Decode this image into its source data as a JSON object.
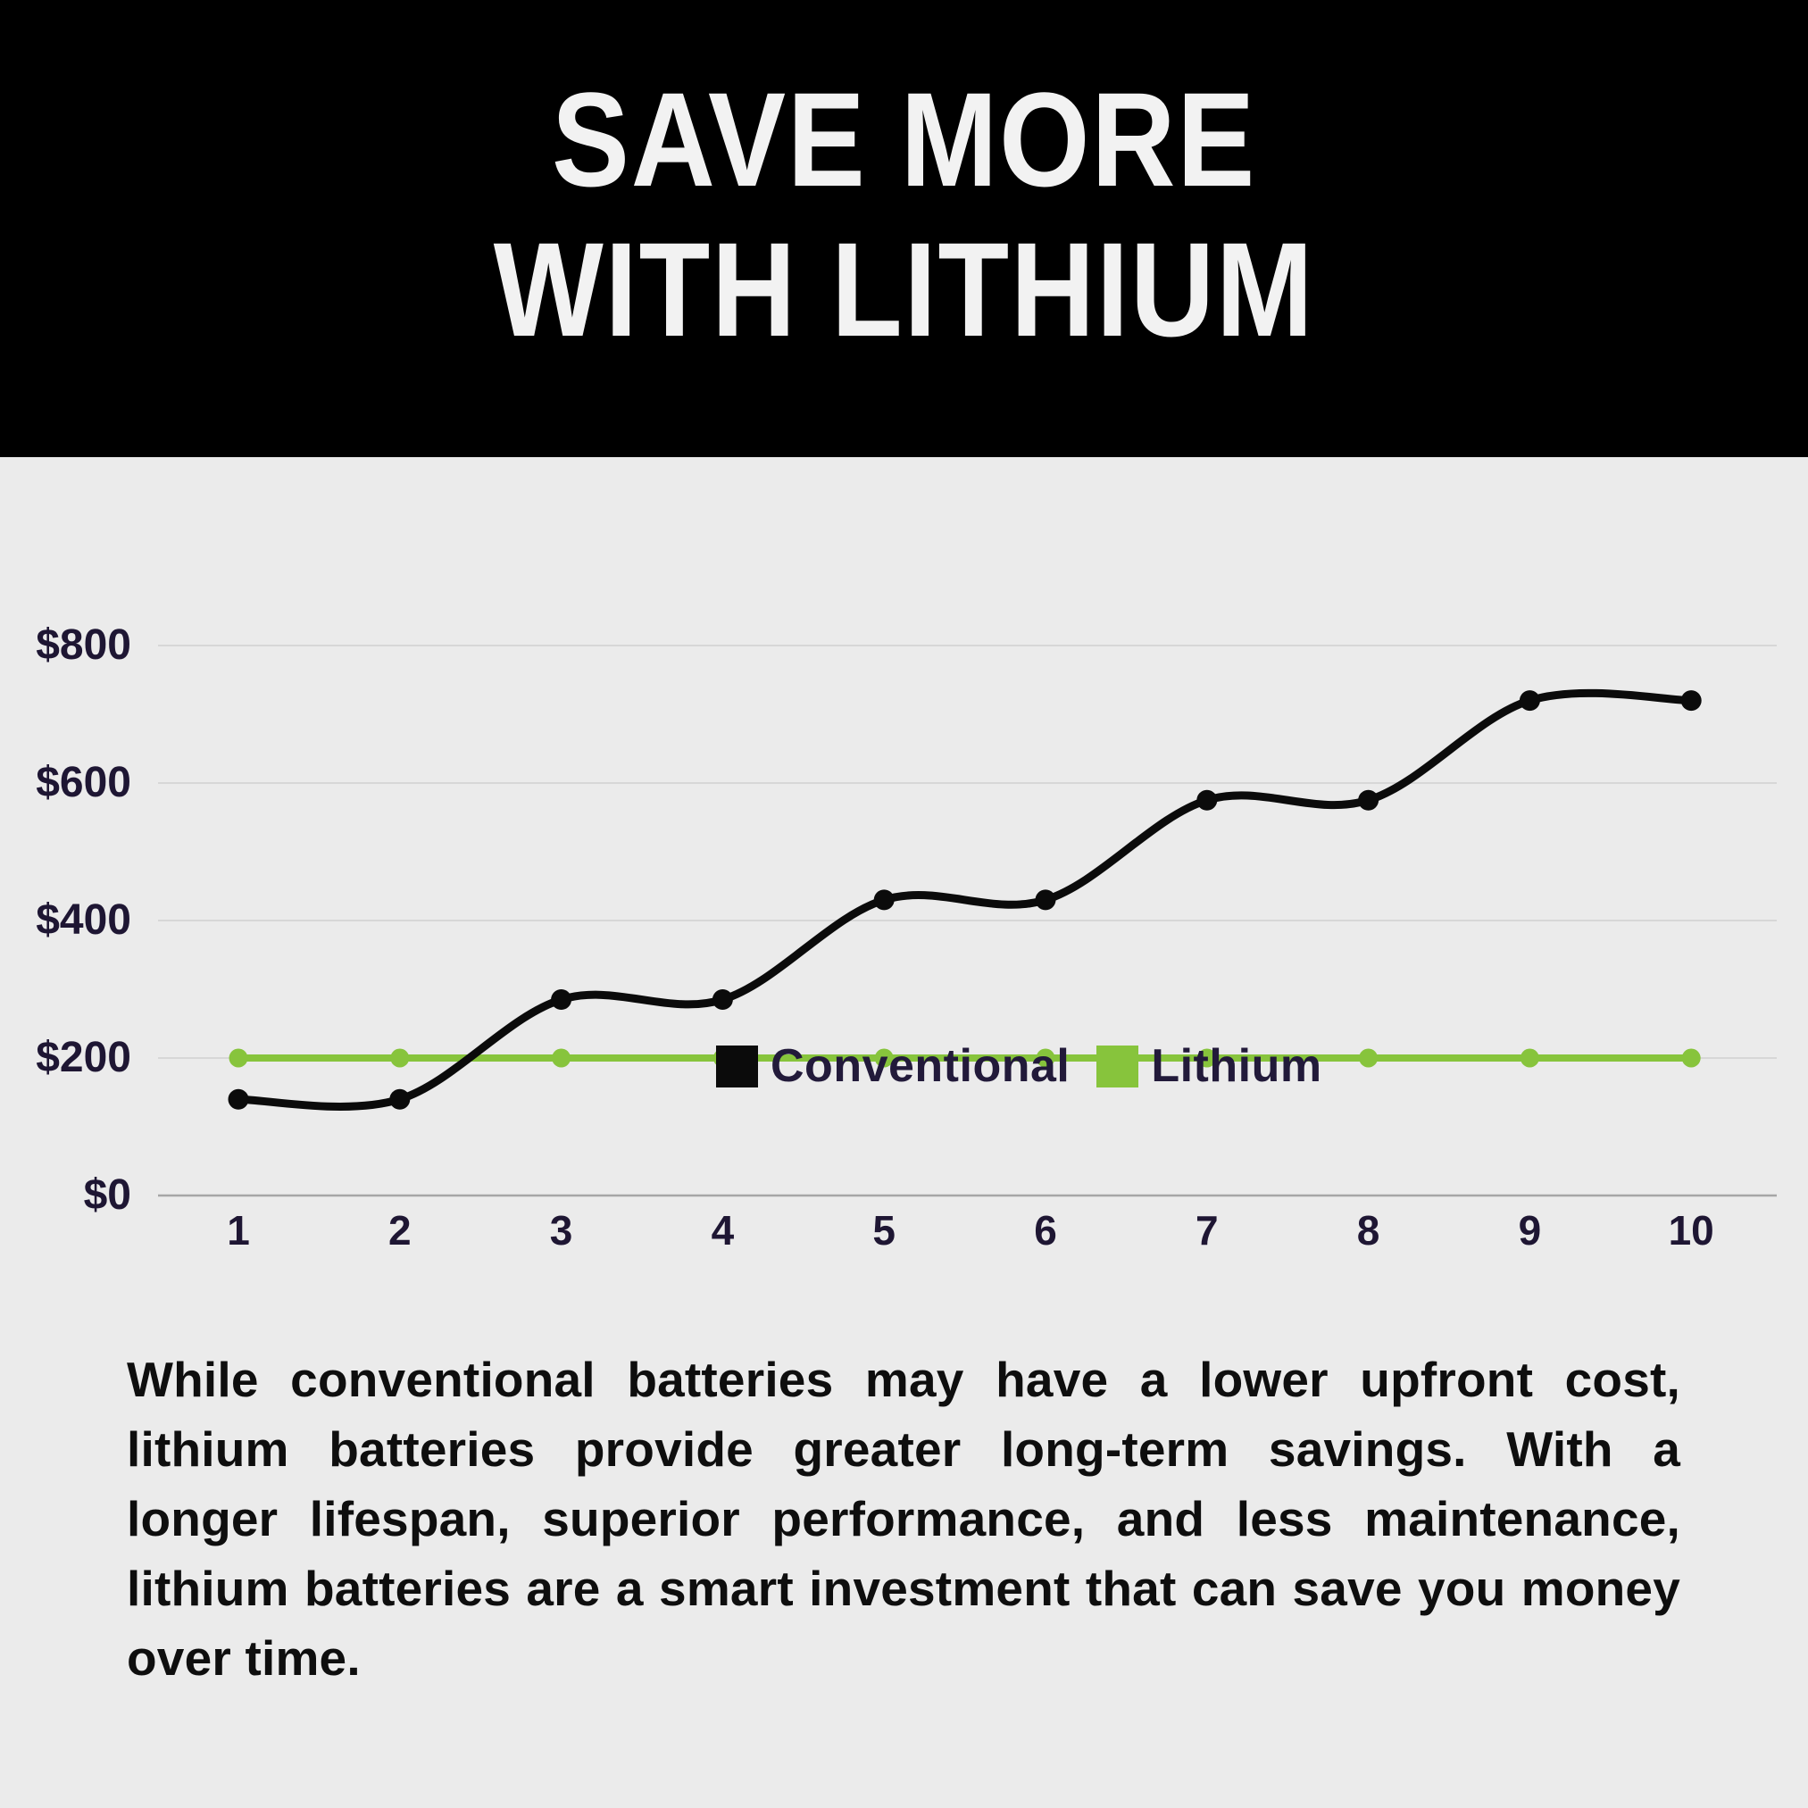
{
  "header": {
    "title_line1": "SAVE MORE",
    "title_line2": "WITH LITHIUM"
  },
  "chart_data": {
    "type": "line",
    "categories": [
      "1",
      "2",
      "3",
      "4",
      "5",
      "6",
      "7",
      "8",
      "9",
      "10"
    ],
    "series": [
      {
        "name": "Conventional",
        "color": "#0b0b0b",
        "values": [
          140,
          140,
          285,
          285,
          430,
          430,
          575,
          575,
          720,
          720
        ]
      },
      {
        "name": "Lithium",
        "color": "#87c43c",
        "values": [
          200,
          200,
          200,
          200,
          200,
          200,
          200,
          200,
          200,
          200
        ]
      }
    ],
    "ylim": [
      0,
      800
    ],
    "ytick_step": 200,
    "yticks": [
      "$0",
      "$200",
      "$400",
      "$600",
      "$800"
    ],
    "grid": true,
    "legend_position": "top-center",
    "background": "#ebebeb",
    "gridline_color": "#d7d7d7",
    "axis_line_color": "#a6a6a6",
    "title": "",
    "xlabel": "",
    "ylabel": ""
  },
  "body": {
    "lines": [
      "While conventional batteries may have a lower upfront cost,",
      "lithium batteries provide greater long-term savings. With a",
      "longer lifespan, superior performance, and less maintenance,",
      "lithium batteries are a smart investment that can save you money",
      "over time."
    ]
  }
}
